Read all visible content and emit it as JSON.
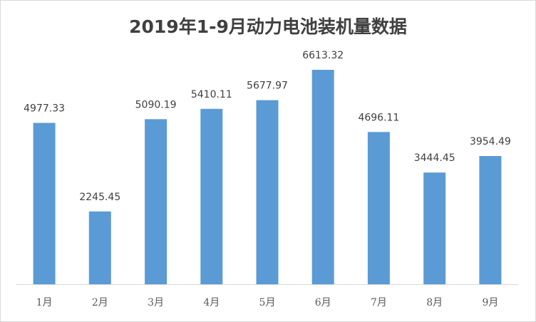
{
  "chart_data": {
    "type": "bar",
    "title": "2019年1-9月动力电池装机量数据",
    "categories": [
      "1月",
      "2月",
      "3月",
      "4月",
      "5月",
      "6月",
      "7月",
      "8月",
      "9月"
    ],
    "values": [
      4977.33,
      2245.45,
      5090.19,
      5410.11,
      5677.97,
      6613.32,
      4696.11,
      3444.45,
      3954.49
    ],
    "data_labels": [
      "4977.33",
      "2245.45",
      "5090.19",
      "5410.11",
      "5677.97",
      "6613.32",
      "4696.11",
      "3444.45",
      "3954.49"
    ],
    "xlabel": "",
    "ylabel": "",
    "ylim": [
      0,
      7000
    ],
    "grid": false,
    "legend": "none",
    "bar_color": "#5b9bd5"
  }
}
